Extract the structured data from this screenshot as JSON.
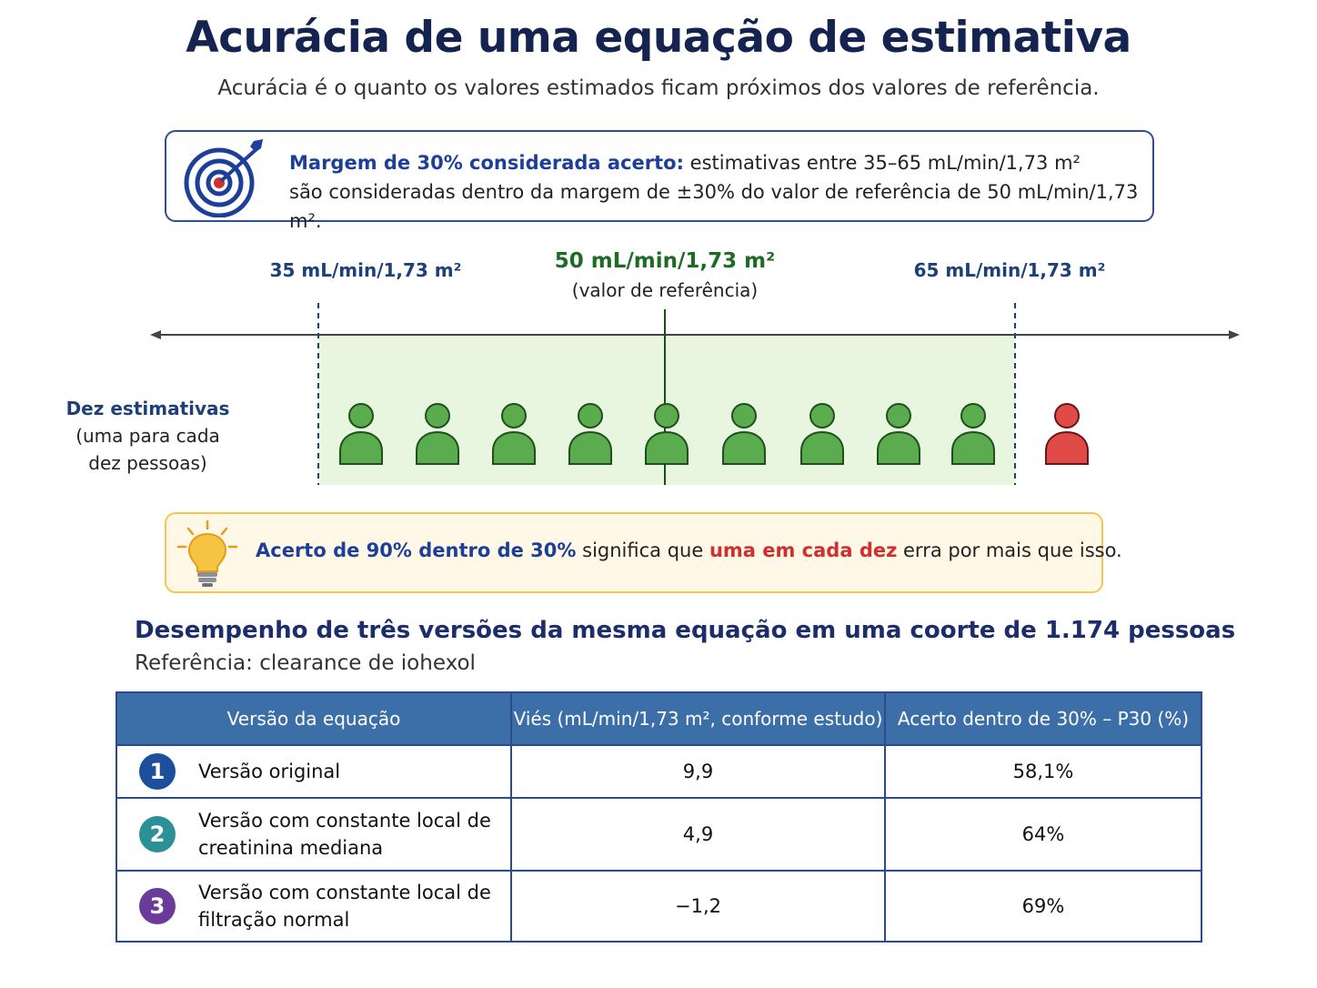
{
  "header": {
    "title": "Acurácia de uma equação de estimativa",
    "subtitle": "Acurácia é o quanto os valores estimados ficam próximos dos valores de referência."
  },
  "info_box": {
    "icon": "target-arrow-icon",
    "highlight": "Margem de 30% considerada acerto:",
    "line1_rest": " estimativas entre 35–65 mL/min/1,73 m²",
    "line2": "são consideradas dentro da margem de ±30% do valor de referência de 50 mL/min/1,73 m²."
  },
  "scale": {
    "low_label": "35 mL/min/1,73 m²",
    "reference_label": "50 mL/min/1,73 m²",
    "reference_sublabel": "(valor de referência)",
    "high_label": "65 mL/min/1,73 m²",
    "low_value": 35,
    "reference_value": 50,
    "high_value": 65
  },
  "people": {
    "label_bold": "Dez estimativas",
    "label_line2": "(uma para cada",
    "label_line3": "dez pessoas)",
    "total": 10,
    "within_margin": 9,
    "outside_margin": 1,
    "color_within": "#5aac4e",
    "color_outside": "#e04a47"
  },
  "tip_box": {
    "icon": "lightbulb-icon",
    "highlight": "Acerto de 90% dentro de 30%",
    "middle": " significa que ",
    "red": "uma em cada dez",
    "end": " erra por mais que isso."
  },
  "section": {
    "title": "Desempenho de três versões da mesma equação em uma coorte de 1.174 pessoas",
    "subtitle": "Referência: clearance de iohexol"
  },
  "table": {
    "headers": [
      "Versão da equação",
      "Viés (mL/min/1,73 m², conforme estudo)",
      "Acerto dentro de 30% – P30 (%)"
    ],
    "rows": [
      {
        "badge": "1",
        "badge_color": "#1d4f9c",
        "version_line1": "Versão original",
        "version_line2": "",
        "bias": "9,9",
        "p30": "58,1%"
      },
      {
        "badge": "2",
        "badge_color": "#2b9196",
        "version_line1": "Versão com constante local de",
        "version_line2": "creatinina mediana",
        "bias": "4,9",
        "p30": "64%"
      },
      {
        "badge": "3",
        "badge_color": "#6b3b9c",
        "version_line1": "Versão com constante local de",
        "version_line2": "filtração normal",
        "bias": "−1,2",
        "p30": "69%"
      }
    ]
  }
}
